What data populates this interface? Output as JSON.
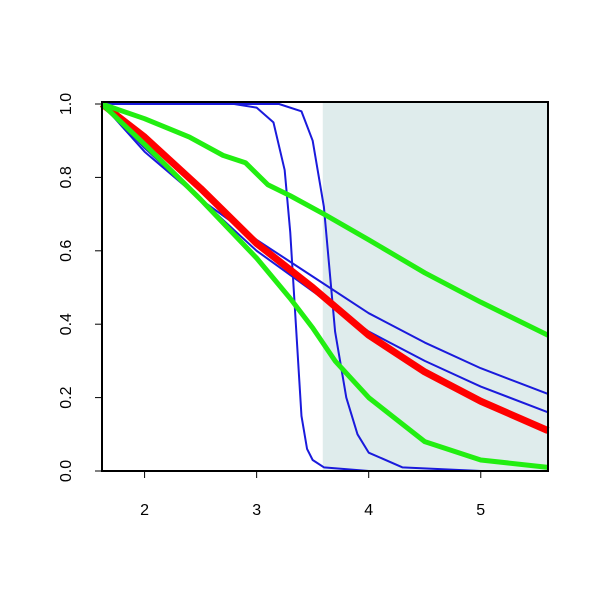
{
  "chart_data": {
    "type": "line",
    "xlim": [
      1.62,
      5.6
    ],
    "ylim": [
      0,
      1
    ],
    "xticks": [
      2,
      3,
      4,
      5
    ],
    "yticks": [
      {
        "value": 0,
        "label": "0.0"
      },
      0.2,
      0.4,
      0.6,
      0.8,
      {
        "value": 1,
        "label": "1.0"
      }
    ],
    "shaded_region": {
      "xlim": [
        3.59,
        5.6
      ],
      "color": "#dfecec"
    },
    "series": [
      {
        "color": "#1a1adc",
        "width": 2,
        "x": [
          1.62,
          2,
          2.5,
          3,
          3.5,
          4,
          4.5,
          5,
          5.6
        ],
        "values": [
          1,
          0.88,
          0.74,
          0.6,
          0.49,
          0.38,
          0.3,
          0.23,
          0.16
        ]
      },
      {
        "color": "#1a1adc",
        "width": 2,
        "x": [
          1.62,
          2,
          2.5,
          3,
          3.5,
          4,
          4.5,
          5,
          5.6
        ],
        "values": [
          1,
          0.87,
          0.74,
          0.63,
          0.53,
          0.43,
          0.35,
          0.28,
          0.21
        ]
      },
      {
        "color": "#1a1adc",
        "width": 2,
        "x": [
          1.62,
          2.8,
          3,
          3.15,
          3.25,
          3.3,
          3.35,
          3.4,
          3.45,
          3.5,
          3.6,
          4,
          5.6
        ],
        "values": [
          1,
          1,
          0.99,
          0.95,
          0.82,
          0.65,
          0.4,
          0.15,
          0.06,
          0.03,
          0.01,
          0,
          0
        ]
      },
      {
        "color": "#1a1adc",
        "width": 2,
        "x": [
          1.62,
          3.2,
          3.4,
          3.5,
          3.6,
          3.65,
          3.7,
          3.8,
          3.9,
          4,
          4.3,
          5,
          5.6
        ],
        "values": [
          1,
          1,
          0.98,
          0.9,
          0.72,
          0.55,
          0.38,
          0.2,
          0.1,
          0.05,
          0.01,
          0,
          0
        ]
      },
      {
        "color": "#ff0000",
        "width": 7,
        "x": [
          1.62,
          2,
          2.5,
          3,
          3.5,
          4,
          4.5,
          5,
          5.6
        ],
        "values": [
          1,
          0.91,
          0.77,
          0.62,
          0.5,
          0.37,
          0.27,
          0.19,
          0.11
        ]
      },
      {
        "color": "#22ee11",
        "width": 5,
        "x": [
          1.62,
          2,
          2.4,
          2.7,
          2.9,
          3.1,
          3.3,
          3.6,
          4,
          4.5,
          5,
          5.6
        ],
        "values": [
          1,
          0.96,
          0.91,
          0.86,
          0.84,
          0.78,
          0.75,
          0.7,
          0.63,
          0.54,
          0.46,
          0.37
        ]
      },
      {
        "color": "#22ee11",
        "width": 5,
        "x": [
          1.62,
          2,
          2.5,
          3,
          3.3,
          3.5,
          3.7,
          4,
          4.5,
          5,
          5.6
        ],
        "values": [
          1,
          0.89,
          0.74,
          0.58,
          0.47,
          0.39,
          0.3,
          0.2,
          0.08,
          0.03,
          0.01
        ]
      }
    ]
  }
}
